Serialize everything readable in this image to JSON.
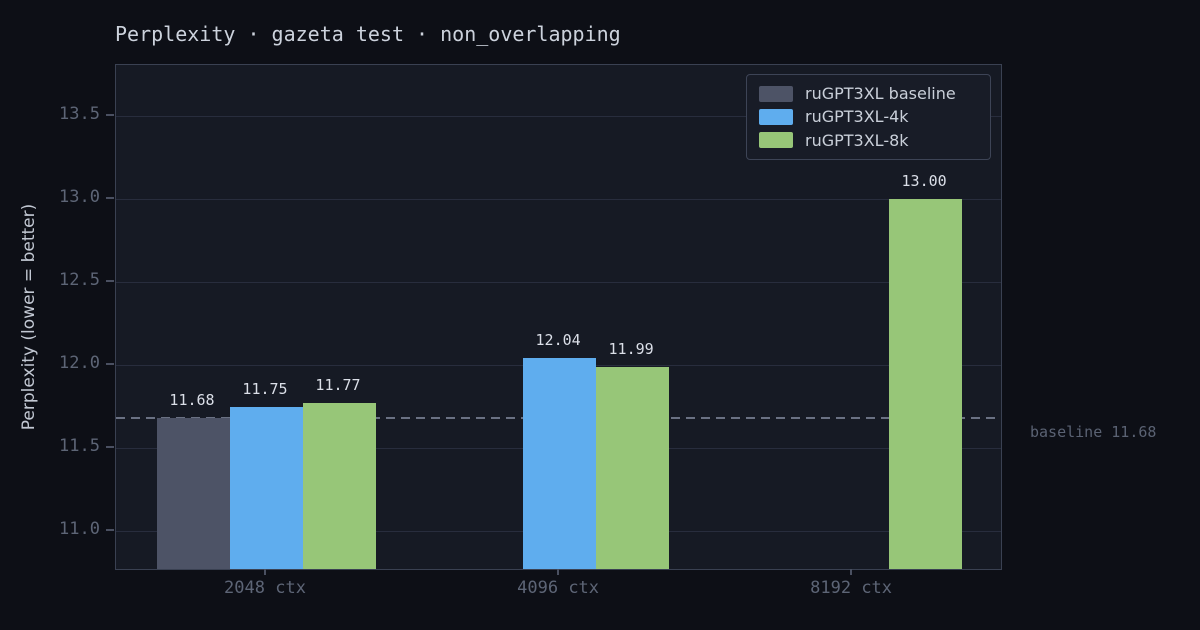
{
  "title": "Perplexity · gazeta test · non_overlapping",
  "legend": {
    "items": [
      {
        "label": "ruGPT3XL baseline",
        "color": "#4d5366"
      },
      {
        "label": "ruGPT3XL-4k",
        "color": "#5fadee"
      },
      {
        "label": "ruGPT3XL-8k",
        "color": "#97c678"
      }
    ]
  },
  "colors": {
    "page_background": "#0d0f16",
    "plot_background": "#161a24",
    "gridline": "#282d3d",
    "spine": "#3a4152",
    "tick_label": "#5d6576",
    "value_label": "#dbdfe8",
    "baseline_line": "#6a7183",
    "baseline_text": "#5a6273"
  },
  "chart_data": {
    "type": "bar",
    "title": "Perplexity · gazeta test · non_overlapping",
    "categories": [
      "2048 ctx",
      "4096 ctx",
      "8192 ctx"
    ],
    "series": [
      {
        "name": "ruGPT3XL baseline",
        "color": "#4d5366",
        "values": [
          11.68,
          null,
          null
        ]
      },
      {
        "name": "ruGPT3XL-4k",
        "color": "#5fadee",
        "values": [
          11.75,
          12.04,
          null
        ]
      },
      {
        "name": "ruGPT3XL-8k",
        "color": "#97c678",
        "values": [
          11.77,
          11.99,
          13.0
        ]
      }
    ],
    "value_labels": [
      [
        "11.68",
        "11.75",
        "11.77"
      ],
      [
        null,
        "12.04",
        "11.99"
      ],
      [
        null,
        null,
        "13.00"
      ]
    ],
    "xlabel": "",
    "ylabel": "Perplexity (lower = better)",
    "yticks": [
      "11.0",
      "11.5",
      "12.0",
      "12.5",
      "13.0",
      "13.5"
    ],
    "ytick_values": [
      11.0,
      11.5,
      12.0,
      12.5,
      13.0,
      13.5
    ],
    "ylim": [
      10.77,
      13.81
    ],
    "grid": true,
    "legend_position": "upper right",
    "baseline": {
      "value": 11.68,
      "label": "baseline 11.68",
      "style": "dashed"
    }
  }
}
